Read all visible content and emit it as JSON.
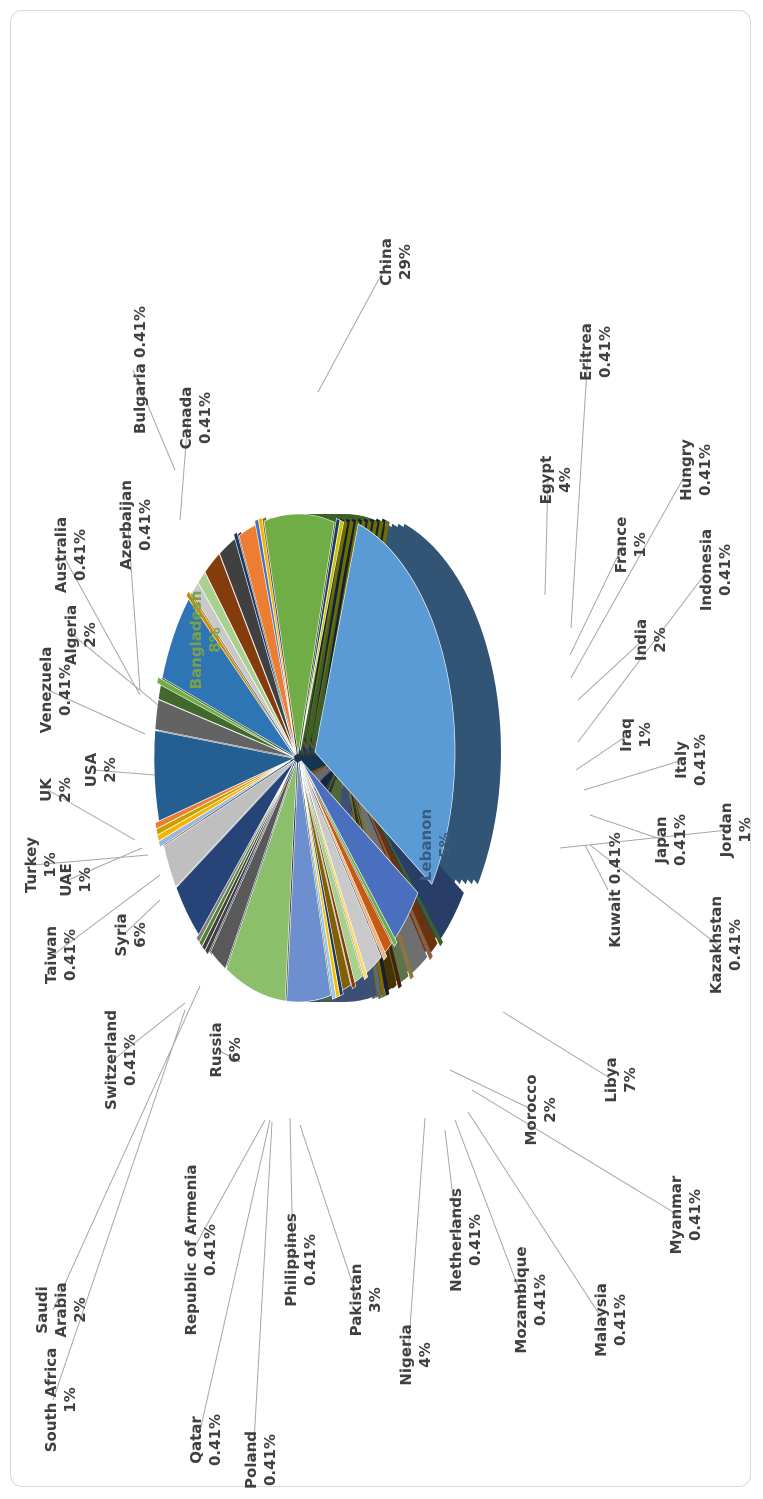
{
  "chart_data": {
    "type": "pie",
    "categories": [
      "Algeria",
      "Australia",
      "Azerbaijan",
      "Bangladesh",
      "Bulgaria",
      "Canada",
      "China",
      "Egypt",
      "Eritrea",
      "France",
      "Hungry",
      "India",
      "Indonesia",
      "Iraq",
      "Italy",
      "Japan",
      "Jordan",
      "Kazakhstan",
      "Kuwait",
      "Lebanon",
      "Libya",
      "Malaysia",
      "Morocco",
      "Mozambique",
      "Myanmar",
      "Netherlands",
      "Nigeria",
      "Pakistan",
      "Philippines",
      "Poland",
      "Qatar",
      "Republic of Armenia",
      "Russia",
      "Saudi Arabia",
      "South Africa",
      "Switzerland",
      "Syria",
      "Taiwan",
      "Turkey",
      "UAE",
      "UK",
      "USA",
      "Venezuela"
    ],
    "values": [
      2,
      0.41,
      0.41,
      8,
      0.41,
      0.41,
      29,
      4,
      0.41,
      1,
      0.41,
      2,
      0.41,
      1,
      0.41,
      0.41,
      1,
      0.41,
      0.41,
      5,
      7,
      0.41,
      2,
      0.41,
      0.41,
      0.41,
      4,
      3,
      0.41,
      0.41,
      0.41,
      0.41,
      6,
      2,
      1,
      0.41,
      6,
      0.41,
      1,
      1,
      2,
      2,
      0.41
    ],
    "labels": [
      "Algeria\n2%",
      "Australia\n0.41%",
      "Azerbaijan\n0.41%",
      "Bangladesh\n8%",
      "Bulgaria 0.41%",
      "Canada\n0.41%",
      "China\n29%",
      "Egypt\n4%",
      "Eritrea\n0.41%",
      "France\n1%",
      "Hungry\n0.41%",
      "India\n2%",
      "Indonesia\n0.41%",
      "Iraq\n1%",
      "Italy\n0.41%",
      "Japan\n0.41%",
      "Jordan\n1%",
      "Kazakhstan\n0.41%",
      "Kuwait 0.41%",
      "Lebanon\n5%",
      "Libya\n7%",
      "Malaysia\n0.41%",
      "Morocco\n2%",
      "Mozambique\n0.41%",
      "Myanmar\n0.41%",
      "Netherlands\n0.41%",
      "Nigeria\n4%",
      "Pakistan\n3%",
      "Philippines\n0.41%",
      "Poland\n0.41%",
      "Qatar\n0.41%",
      "Republic of Armenia\n0.41%",
      "Russia\n6%",
      "Saudi\nArabia\n2%",
      "South Africa\n1%",
      "Switzerland\n0.41%",
      "Syria\n6%",
      "Taiwan\n0.41%",
      "Turkey\n1%",
      "UAE\n1%",
      "UK\n2%",
      "USA\n2%",
      "Venezuela\n0.41%"
    ],
    "colors": [
      "#ED7D31",
      "#4472C4",
      "#F4B400",
      "#70AD47",
      "#C9C400",
      "#1F3864",
      "#5B9BD5",
      "#4A6FBF",
      "#70AD47",
      "#C55A11",
      "#F4B183",
      "#C9C9C9",
      "#FFD966",
      "#A9D18E",
      "#843C0C",
      "#1F3864",
      "#806000",
      "#F4C000",
      "#9DC3E6",
      "#6E8FCF",
      "#8CBF6B",
      "#3F3F3F",
      "#595959",
      "#548235",
      "#404040",
      "#7F7F7F",
      "#264478",
      "#BFBFBF",
      "#9DB6E0",
      "#F4B400",
      "#C9A000",
      "#ED7D31",
      "#255E91",
      "#636363",
      "#43682B",
      "#70AD47",
      "#2E75B6",
      "#D08C00",
      "#C9C9C9",
      "#A9D18E",
      "#843C0C",
      "#404040",
      "#203864"
    ],
    "order": [
      "China",
      "Egypt",
      "Eritrea",
      "France",
      "Hungry",
      "India",
      "Indonesia",
      "Iraq",
      "Italy",
      "Jordan",
      "Japan",
      "Kazakhstan",
      "Kuwait",
      "Lebanon",
      "Libya",
      "Morocco",
      "Myanmar",
      "Malaysia",
      "Mozambique",
      "Netherlands",
      "Nigeria",
      "Pakistan",
      "Philippines",
      "Poland",
      "Qatar",
      "Republic of Armenia",
      "Russia",
      "Saudi Arabia",
      "South Africa",
      "Switzerland",
      "Syria",
      "Taiwan",
      "Turkey",
      "UAE",
      "UK",
      "USA",
      "Venezuela",
      "Algeria",
      "Australia",
      "Azerbaijan",
      "Bangladesh",
      "Canada",
      "Bulgaria"
    ],
    "inside_labels": [
      "Bangladesh",
      "Lebanon"
    ],
    "legend": "none",
    "style": "3d-exploded",
    "orientation": "rotated-90"
  }
}
